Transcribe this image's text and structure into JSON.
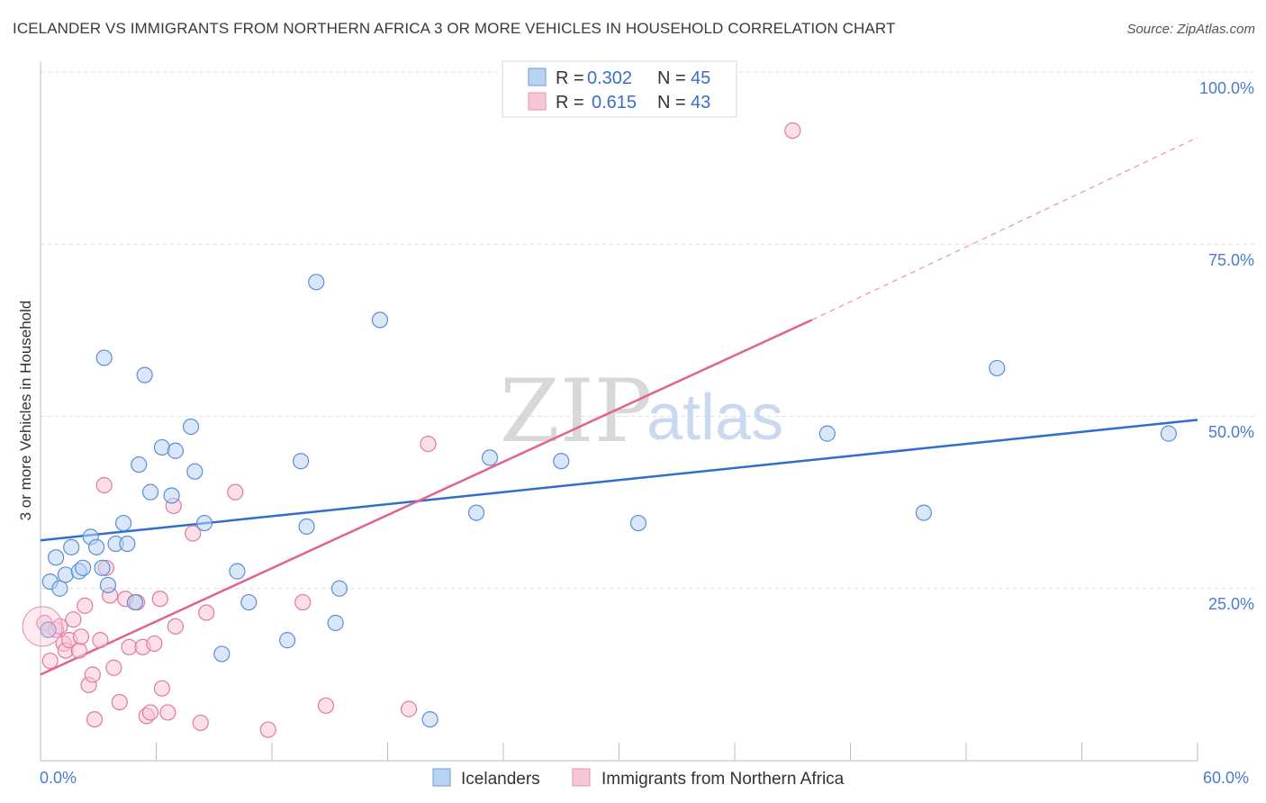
{
  "title": "ICELANDER VS IMMIGRANTS FROM NORTHERN AFRICA 3 OR MORE VEHICLES IN HOUSEHOLD CORRELATION CHART",
  "source": "Source: ZipAtlas.com",
  "watermark": {
    "zip": "ZIP",
    "atlas": "atlas"
  },
  "legend_top": [
    {
      "r_label": "R = ",
      "r_value": "0.302",
      "n_label": "N = ",
      "n_value": "45",
      "color": "#a9c8f0"
    },
    {
      "r_label": "R = ",
      "r_value": "0.615",
      "n_label": "N = ",
      "n_value": "43",
      "color": "#f5b8cb"
    }
  ],
  "legend_bottom": [
    {
      "label": "Icelanders",
      "color": "#a9c8f0"
    },
    {
      "label": "Immigrants from Northern Africa",
      "color": "#f5b8cb"
    }
  ],
  "chart_data": {
    "type": "scatter",
    "title": "ICELANDER VS IMMIGRANTS FROM NORTHERN AFRICA 3 OR MORE VEHICLES IN HOUSEHOLD CORRELATION CHART",
    "xlabel": "",
    "ylabel": "3 or more Vehicles in Household",
    "xlim": [
      0,
      60
    ],
    "ylim": [
      0,
      100
    ],
    "x_tick_labels": [
      "0.0%",
      "60.0%"
    ],
    "y_tick_labels": [
      "100.0%",
      "75.0%",
      "50.0%",
      "25.0%"
    ],
    "y_ticks": [
      100,
      75,
      50,
      25
    ],
    "grid": "horizontal dashed",
    "series": [
      {
        "name": "Icelanders",
        "color": "#5b8fd6",
        "fill": "#b9d3f3",
        "trend": {
          "x": [
            0,
            60
          ],
          "y": [
            32.0,
            49.5
          ],
          "color": "#2f6fcc"
        },
        "points": [
          [
            0.4,
            19.0
          ],
          [
            0.5,
            26.0
          ],
          [
            0.8,
            29.5
          ],
          [
            1.0,
            25.0
          ],
          [
            1.3,
            27.0
          ],
          [
            1.6,
            31.0
          ],
          [
            2.0,
            27.5
          ],
          [
            2.2,
            28.0
          ],
          [
            2.6,
            32.5
          ],
          [
            2.9,
            31.0
          ],
          [
            3.2,
            28.0
          ],
          [
            3.5,
            25.5
          ],
          [
            3.3,
            58.5
          ],
          [
            3.9,
            31.5
          ],
          [
            4.3,
            34.5
          ],
          [
            4.5,
            31.5
          ],
          [
            4.9,
            23.0
          ],
          [
            5.1,
            43.0
          ],
          [
            5.4,
            56.0
          ],
          [
            5.7,
            39.0
          ],
          [
            6.3,
            45.5
          ],
          [
            6.8,
            38.5
          ],
          [
            7.0,
            45.0
          ],
          [
            7.8,
            48.5
          ],
          [
            8.0,
            42.0
          ],
          [
            8.5,
            34.5
          ],
          [
            9.4,
            15.5
          ],
          [
            10.2,
            27.5
          ],
          [
            10.8,
            23.0
          ],
          [
            12.8,
            17.5
          ],
          [
            13.5,
            43.5
          ],
          [
            13.8,
            34.0
          ],
          [
            14.3,
            69.5
          ],
          [
            15.3,
            20.0
          ],
          [
            15.5,
            25.0
          ],
          [
            17.6,
            64.0
          ],
          [
            20.2,
            6.0
          ],
          [
            22.6,
            36.0
          ],
          [
            23.3,
            44.0
          ],
          [
            27.0,
            43.5
          ],
          [
            31.0,
            34.5
          ],
          [
            40.8,
            47.5
          ],
          [
            45.8,
            36.0
          ],
          [
            49.6,
            57.0
          ],
          [
            58.5,
            47.5
          ]
        ]
      },
      {
        "name": "Immigrants from Northern Africa",
        "color": "#e27a9f",
        "fill": "#f8c7d6",
        "trend": {
          "x": [
            0,
            40
          ],
          "y": [
            12.5,
            64.0
          ],
          "dashed_to": {
            "x": 60,
            "y": 90.5
          },
          "color": "#e2628f"
        },
        "points": [
          [
            0.2,
            20.0
          ],
          [
            0.4,
            19.0
          ],
          [
            0.5,
            14.5
          ],
          [
            0.8,
            19.0
          ],
          [
            1.0,
            19.5
          ],
          [
            1.2,
            17.0
          ],
          [
            1.3,
            16.0
          ],
          [
            1.5,
            17.5
          ],
          [
            1.7,
            20.5
          ],
          [
            2.0,
            16.0
          ],
          [
            2.1,
            18.0
          ],
          [
            2.3,
            22.5
          ],
          [
            2.5,
            11.0
          ],
          [
            2.7,
            12.5
          ],
          [
            2.8,
            6.0
          ],
          [
            3.1,
            17.5
          ],
          [
            3.3,
            40.0
          ],
          [
            3.4,
            28.0
          ],
          [
            3.6,
            24.0
          ],
          [
            3.8,
            13.5
          ],
          [
            4.1,
            8.5
          ],
          [
            4.4,
            23.5
          ],
          [
            4.6,
            16.5
          ],
          [
            5.0,
            23.0
          ],
          [
            5.3,
            16.5
          ],
          [
            5.5,
            6.5
          ],
          [
            5.7,
            7.0
          ],
          [
            5.9,
            17.0
          ],
          [
            6.2,
            23.5
          ],
          [
            6.3,
            10.5
          ],
          [
            6.6,
            7.0
          ],
          [
            7.0,
            19.5
          ],
          [
            6.9,
            37.0
          ],
          [
            7.9,
            33.0
          ],
          [
            8.3,
            5.5
          ],
          [
            8.6,
            21.5
          ],
          [
            10.1,
            39.0
          ],
          [
            11.8,
            4.5
          ],
          [
            13.6,
            23.0
          ],
          [
            14.8,
            8.0
          ],
          [
            19.1,
            7.5
          ],
          [
            20.1,
            46.0
          ],
          [
            39.0,
            91.5
          ]
        ]
      }
    ]
  }
}
